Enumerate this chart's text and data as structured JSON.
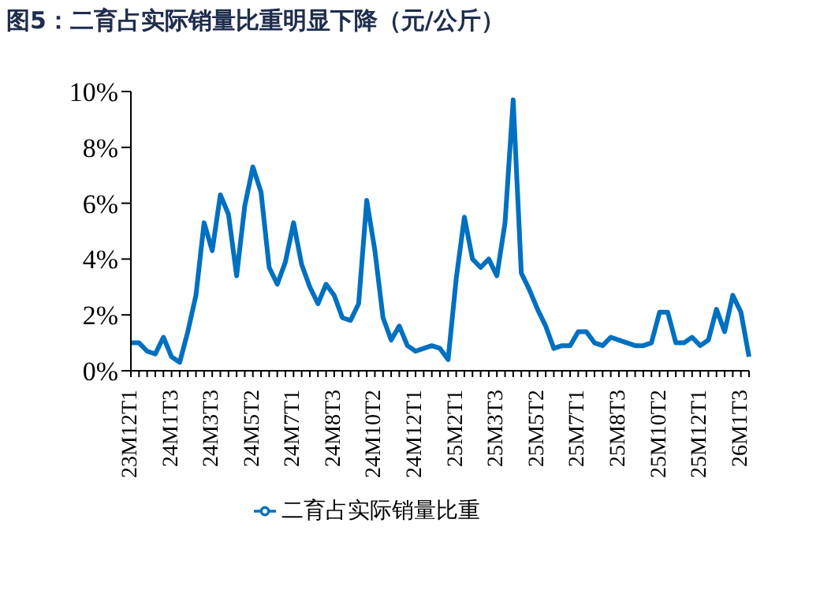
{
  "chart_data": {
    "type": "line",
    "title": "图5：二育占实际销量比重明显下降（元/公斤）",
    "categories": [
      "23M12T1",
      null,
      null,
      null,
      null,
      "24M1T3",
      null,
      null,
      null,
      null,
      "24M3T3",
      null,
      null,
      null,
      null,
      "24M5T2",
      null,
      null,
      null,
      null,
      "24M7T1",
      null,
      null,
      null,
      null,
      "24M8T3",
      null,
      null,
      null,
      null,
      "24M10T2",
      null,
      null,
      null,
      null,
      "24M12T1",
      null,
      null,
      null,
      null,
      "25M2T1",
      null,
      null,
      null,
      null,
      "25M3T3",
      null,
      null,
      null,
      null,
      "25M5T2",
      null,
      null,
      null,
      null,
      "25M7T1",
      null,
      null,
      null,
      null,
      "25M8T3",
      null,
      null,
      null,
      null,
      "25M10T2",
      null,
      null,
      null,
      null,
      "25M12T1",
      null,
      null,
      null,
      null,
      "26M1T3",
      null
    ],
    "series": [
      {
        "name": "二育占实际销量比重",
        "color": "#0070c0",
        "values": [
          1.0,
          1.0,
          0.7,
          0.6,
          1.2,
          0.5,
          0.3,
          1.4,
          2.7,
          5.3,
          4.3,
          6.3,
          5.6,
          3.4,
          5.9,
          7.3,
          6.4,
          3.7,
          3.1,
          3.9,
          5.3,
          3.8,
          3.0,
          2.4,
          3.1,
          2.7,
          1.9,
          1.8,
          2.4,
          6.1,
          4.3,
          1.9,
          1.1,
          1.6,
          0.9,
          0.7,
          0.8,
          0.9,
          0.8,
          0.4,
          3.3,
          5.5,
          4.0,
          3.7,
          4.0,
          3.4,
          5.3,
          9.7,
          3.5,
          2.9,
          2.2,
          1.6,
          0.8,
          0.9,
          0.9,
          1.4,
          1.4,
          1.0,
          0.9,
          1.2,
          1.1,
          1.0,
          0.9,
          0.9,
          1.0,
          2.1,
          2.1,
          1.0,
          1.0,
          1.2,
          0.9,
          1.1,
          2.2,
          1.4,
          2.7,
          2.1,
          0.5
        ]
      }
    ],
    "ylim": [
      0,
      10
    ],
    "yticks": [
      {
        "value": 0,
        "label": "0%"
      },
      {
        "value": 2,
        "label": "2%"
      },
      {
        "value": 4,
        "label": "4%"
      },
      {
        "value": 6,
        "label": "6%"
      },
      {
        "value": 8,
        "label": "8%"
      },
      {
        "value": 10,
        "label": "10%"
      }
    ],
    "grid": false,
    "legend": "bottom",
    "marker": "none",
    "line_style": "solid"
  }
}
